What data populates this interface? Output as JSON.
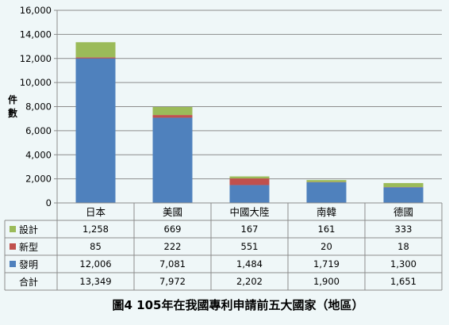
{
  "caption": "圖4  105年在我國專利申請前五大國家（地區）",
  "chart_data": {
    "type": "bar",
    "stacked": true,
    "categories": [
      "日本",
      "美國",
      "中國大陸",
      "南韓",
      "德國"
    ],
    "series": [
      {
        "name": "發明",
        "values": [
          12006,
          7081,
          1484,
          1719,
          1300
        ],
        "color": "#4f81bd"
      },
      {
        "name": "新型",
        "values": [
          85,
          222,
          551,
          20,
          18
        ],
        "color": "#c0504d"
      },
      {
        "name": "設計",
        "values": [
          1258,
          669,
          167,
          161,
          333
        ],
        "color": "#9bbb59"
      }
    ],
    "table_rows": [
      "設計",
      "新型",
      "發明"
    ],
    "total_label": "合計",
    "totals": [
      13349,
      7972,
      2202,
      1900,
      1651
    ],
    "ylabel": "件數",
    "ylim": [
      0,
      16000
    ],
    "yticks": [
      0,
      2000,
      4000,
      6000,
      8000,
      10000,
      12000,
      14000,
      16000
    ],
    "grid": true,
    "legend": "data-table"
  }
}
